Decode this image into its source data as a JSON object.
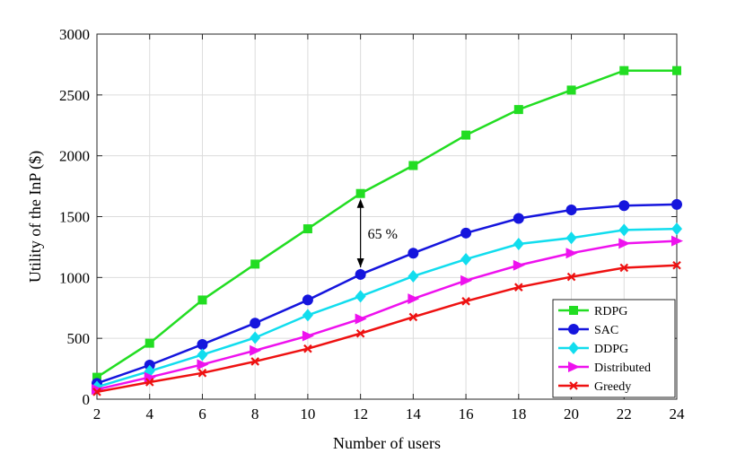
{
  "chart_data": {
    "type": "line",
    "xlabel": "Number of users",
    "ylabel": "Utility of the InP ($)",
    "xlim": [
      2,
      24
    ],
    "ylim": [
      0,
      3000
    ],
    "xticks": [
      2,
      4,
      6,
      8,
      10,
      12,
      14,
      16,
      18,
      20,
      22,
      24
    ],
    "yticks": [
      0,
      500,
      1000,
      1500,
      2000,
      2500,
      3000
    ],
    "grid": true,
    "legend_position": "bottom-right",
    "x": [
      2,
      4,
      6,
      8,
      10,
      12,
      14,
      16,
      18,
      20,
      22,
      24
    ],
    "series": [
      {
        "name": "RDPG",
        "color": "#22dd22",
        "marker": "square",
        "values": [
          180,
          460,
          815,
          1110,
          1400,
          1690,
          1920,
          2170,
          2380,
          2540,
          2700,
          2700
        ]
      },
      {
        "name": "SAC",
        "color": "#1515dd",
        "marker": "circle",
        "values": [
          130,
          280,
          450,
          625,
          815,
          1025,
          1200,
          1365,
          1485,
          1555,
          1590,
          1600
        ]
      },
      {
        "name": "DDPG",
        "color": "#11ddee",
        "marker": "diamond",
        "values": [
          100,
          230,
          365,
          505,
          690,
          845,
          1010,
          1150,
          1275,
          1325,
          1390,
          1400
        ]
      },
      {
        "name": "Distributed",
        "color": "#ee11ee",
        "marker": "triangle-right",
        "values": [
          80,
          180,
          285,
          400,
          520,
          660,
          825,
          975,
          1100,
          1200,
          1280,
          1300
        ]
      },
      {
        "name": "Greedy",
        "color": "#ee1111",
        "marker": "x",
        "values": [
          60,
          140,
          215,
          310,
          415,
          540,
          675,
          805,
          920,
          1005,
          1080,
          1100
        ]
      }
    ],
    "annotation": {
      "text": "65 %",
      "x": 12,
      "y_from": 1025,
      "y_to": 1690
    }
  }
}
